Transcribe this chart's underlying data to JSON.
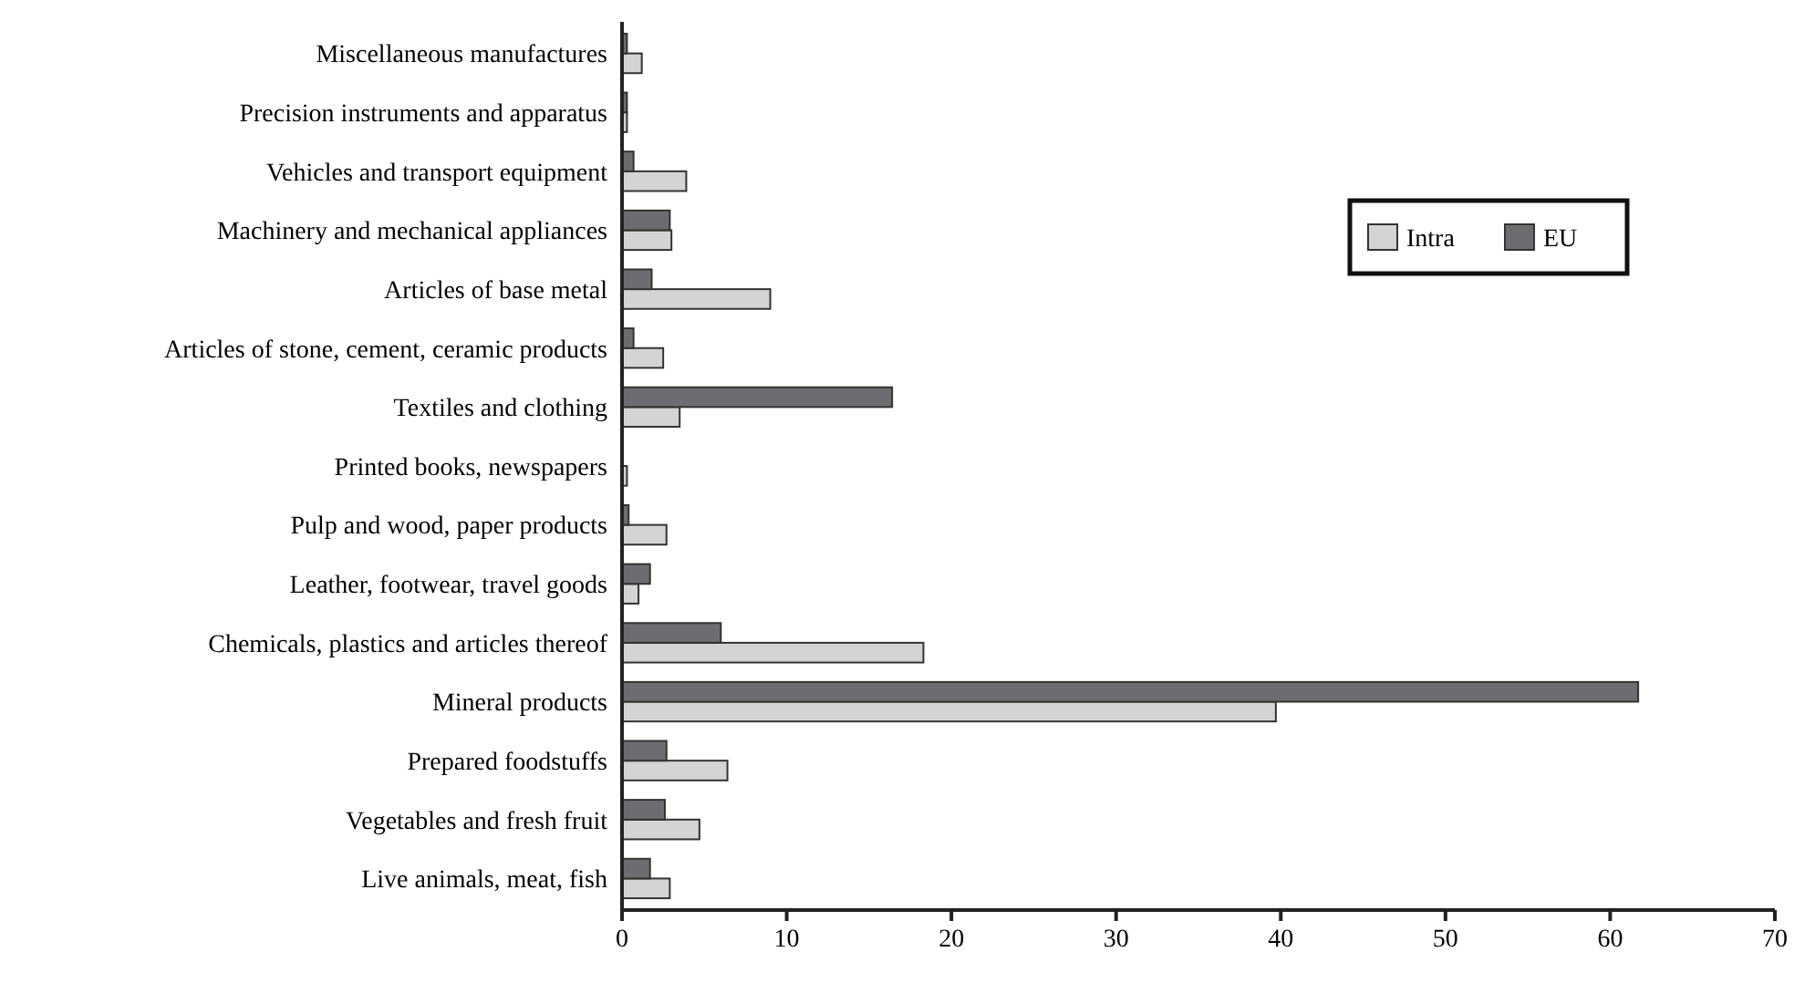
{
  "chart_data": {
    "type": "bar",
    "orientation": "horizontal",
    "categories": [
      "Miscellaneous manufactures",
      "Precision instruments and apparatus",
      "Vehicles and transport equipment",
      "Machinery and mechanical appliances",
      "Articles of base metal",
      "Articles of stone, cement, ceramic products",
      "Textiles and clothing",
      "Printed books, newspapers",
      "Pulp and wood, paper products",
      "Leather, footwear, travel goods",
      "Chemicals, plastics and articles thereof",
      "Mineral products",
      "Prepared foodstuffs",
      "Vegetables and fresh fruit",
      "Live animals, meat, fish"
    ],
    "series": [
      {
        "name": "Intra",
        "color": "#d3d4d6",
        "values": [
          1.2,
          0.3,
          3.9,
          3.0,
          9.0,
          2.5,
          3.5,
          0.3,
          2.7,
          1.0,
          18.3,
          39.7,
          6.4,
          4.7,
          2.9
        ]
      },
      {
        "name": "EU",
        "color": "#6b6d70",
        "values": [
          0.3,
          0.3,
          0.7,
          2.9,
          1.8,
          0.7,
          16.4,
          0,
          0.4,
          1.7,
          6.0,
          61.7,
          2.7,
          2.6,
          1.7
        ]
      }
    ],
    "xlim": [
      0,
      70
    ],
    "xticks": [
      0,
      10,
      20,
      30,
      40,
      50,
      60,
      70
    ],
    "legend": "top right",
    "grid": false
  }
}
